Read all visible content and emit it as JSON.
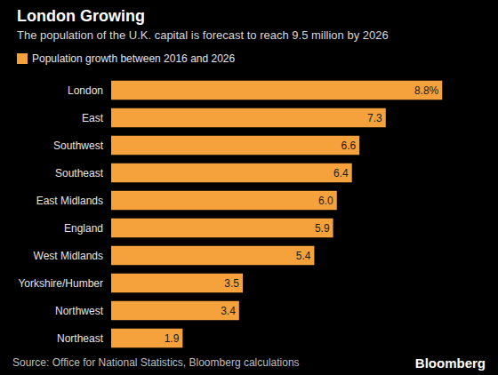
{
  "chart_data": {
    "type": "bar",
    "orientation": "horizontal",
    "title": "London Growing",
    "subtitle": "The population of the U.K. capital is forecast to reach 9.5 million by 2026",
    "source": "Source: Office for National Statistics, Bloomberg calculations",
    "logo": "Bloomberg",
    "categories": [
      "London",
      "East",
      "Southwest",
      "Southeast",
      "East Midlands",
      "England",
      "West Midlands",
      "Yorkshire/Humber",
      "Northwest",
      "Northeast"
    ],
    "series": [
      {
        "name": "Population growth between 2016 and 2026",
        "color": "#f5a23c",
        "values": [
          8.8,
          7.3,
          6.6,
          6.4,
          6.0,
          5.9,
          5.4,
          3.5,
          3.4,
          1.9
        ],
        "value_labels": [
          "8.8%",
          "7.3",
          "6.6",
          "6.4",
          "6.0",
          "5.9",
          "5.4",
          "3.5",
          "3.4",
          "1.9"
        ]
      }
    ],
    "xlim": [
      0,
      10
    ],
    "grid": false,
    "legend": "top-left",
    "data_labels": true,
    "tick_labels": "y"
  }
}
